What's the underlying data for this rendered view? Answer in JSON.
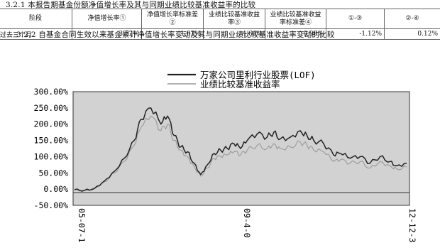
{
  "section_321": {
    "heading": "3.2.1 本报告期基金份额净值增长率及其与同期业绩比较基准收益率的比较",
    "columns": [
      "阶段",
      "净值增长率①",
      "净值增长率标准差②",
      "业绩比较基准收益率③",
      "业绩比较基准收益率标准差④",
      "①-③",
      "②-④"
    ],
    "rows": [
      {
        "cells": [
          "过去三个月",
          "3.52%",
          "1.02%",
          "4.64%",
          "0.90%",
          "-1.12%",
          "0.12%"
        ]
      }
    ]
  },
  "section_322": {
    "heading": "3.2.2 自基金合同生效以来基金累计净值增长率变动及其与同期业绩比较基准收益率变动的比较"
  },
  "colors": {
    "fund_line": "#222222",
    "benchmark_line": "#9a9a9a",
    "plot_bg": "#d2d2d2"
  },
  "chart_data": {
    "type": "line",
    "legend": {
      "position": "top-center",
      "entries": [
        "万家公司里利行业股票(LOF)",
        "业绩比较基准收益率"
      ]
    },
    "y_ticks": [
      "300.00%",
      "250.00%",
      "200.00%",
      "150.00%",
      "100.00%",
      "50.00%",
      "0.00%",
      "-50.00%"
    ],
    "x_tick_labels": [
      "05-07-1",
      "09-4-0",
      "12-12-3"
    ],
    "ylim": [
      -50,
      300
    ],
    "grid": false,
    "x": [
      0,
      0.03,
      0.06,
      0.09,
      0.12,
      0.15,
      0.18,
      0.2,
      0.23,
      0.26,
      0.28,
      0.3,
      0.32,
      0.34,
      0.36,
      0.38,
      0.4,
      0.42,
      0.44,
      0.46,
      0.48,
      0.5,
      0.52,
      0.55,
      0.58,
      0.6,
      0.62,
      0.65,
      0.68,
      0.7,
      0.72,
      0.75,
      0.78,
      0.8,
      0.83,
      0.86,
      0.89,
      0.92,
      0.95,
      0.97,
      1.0
    ],
    "series": [
      {
        "name": "万家公司里利行业股票(LOF)",
        "values": [
          -2,
          -4,
          2,
          25,
          55,
          95,
          150,
          215,
          250,
          200,
          225,
          165,
          130,
          115,
          80,
          45,
          75,
          110,
          120,
          125,
          140,
          125,
          150,
          170,
          160,
          175,
          155,
          160,
          180,
          165,
          150,
          140,
          105,
          110,
          95,
          100,
          80,
          100,
          85,
          72,
          80
        ]
      },
      {
        "name": "业绩比较基准收益率",
        "values": [
          -2,
          -4,
          2,
          22,
          50,
          85,
          135,
          190,
          225,
          180,
          200,
          150,
          120,
          100,
          70,
          40,
          65,
          95,
          100,
          105,
          115,
          105,
          120,
          135,
          125,
          140,
          125,
          130,
          145,
          135,
          120,
          115,
          85,
          90,
          80,
          85,
          65,
          85,
          72,
          62,
          68
        ]
      }
    ]
  }
}
